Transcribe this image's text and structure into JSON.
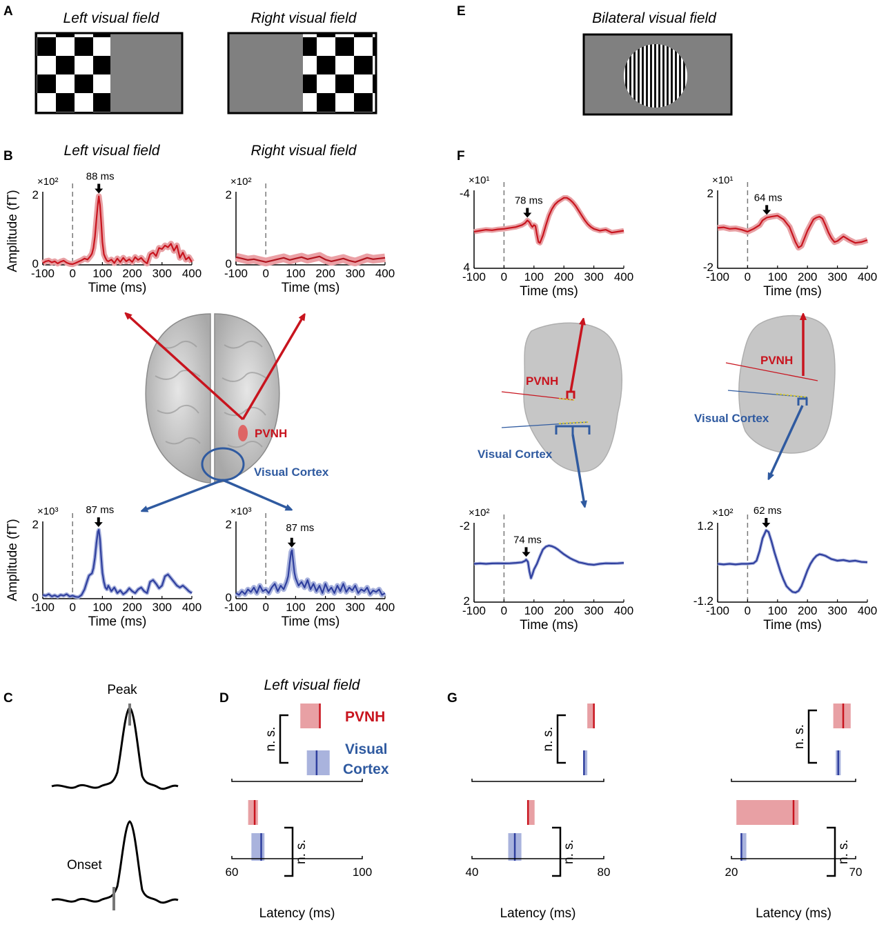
{
  "panels": {
    "A": "A",
    "B": "B",
    "C": "C",
    "D": "D",
    "E": "E",
    "F": "F",
    "G": "G"
  },
  "titles": {
    "left_vf": "Left visual field",
    "right_vf": "Right visual field",
    "bilateral_vf": "Bilateral visual field"
  },
  "labels": {
    "time_axis": "Time (ms)",
    "amp_axis": "Amplitude (fT)",
    "latency_axis": "Latency (ms)",
    "pvnh": "PVNH",
    "visual_cortex": "Visual Cortex",
    "visual": "Visual",
    "cortex": "Cortex",
    "peak": "Peak",
    "onset": "Onset",
    "ns": "n. s."
  },
  "colors": {
    "pvnh": "#c8141e",
    "visual_cortex": "#2f3f9e",
    "pvnh_band": "#e8a0a4",
    "vc_band": "#a9b3dd"
  },
  "chart_data": [
    {
      "id": "B-left-pvnh",
      "type": "line",
      "multiplier": "×10²",
      "peak_label": "88 ms",
      "peak_x": 88,
      "xlim": [
        -100,
        400
      ],
      "ylim": [
        0,
        2
      ],
      "yticks": [
        "0",
        "2"
      ],
      "xticks": [
        -100,
        0,
        100,
        200,
        300,
        400
      ],
      "x": [
        -100,
        -90,
        -80,
        -70,
        -60,
        -50,
        -40,
        -30,
        -20,
        -10,
        0,
        10,
        20,
        30,
        40,
        50,
        60,
        65,
        70,
        75,
        80,
        85,
        88,
        92,
        96,
        100,
        105,
        110,
        115,
        120,
        130,
        140,
        150,
        160,
        170,
        180,
        190,
        200,
        210,
        220,
        230,
        240,
        250,
        260,
        270,
        280,
        290,
        300,
        310,
        320,
        330,
        340,
        350,
        360,
        370,
        380,
        390,
        400
      ],
      "y": [
        0.05,
        0.1,
        0.12,
        0.07,
        0.1,
        0.04,
        0.09,
        0.12,
        0.06,
        0.03,
        0.02,
        0.05,
        0.09,
        0.13,
        0.18,
        0.15,
        0.25,
        0.32,
        0.48,
        0.8,
        1.3,
        1.75,
        1.95,
        1.7,
        1.2,
        0.65,
        0.3,
        0.2,
        0.12,
        0.1,
        0.15,
        0.05,
        0.18,
        0.08,
        0.2,
        0.1,
        0.16,
        0.08,
        0.22,
        0.14,
        0.2,
        0.1,
        0.04,
        0.3,
        0.35,
        0.25,
        0.48,
        0.45,
        0.55,
        0.5,
        0.6,
        0.4,
        0.55,
        0.2,
        0.35,
        0.15,
        0.22,
        0.08
      ]
    },
    {
      "id": "B-right-pvnh",
      "type": "line",
      "multiplier": "×10²",
      "xlim": [
        -100,
        400
      ],
      "ylim": [
        0,
        2
      ],
      "yticks": [
        "0",
        "2"
      ],
      "xticks": [
        -100,
        0,
        100,
        200,
        300,
        400
      ],
      "x": [
        -100,
        -80,
        -60,
        -40,
        -20,
        0,
        20,
        40,
        60,
        80,
        100,
        120,
        140,
        160,
        180,
        200,
        220,
        240,
        260,
        280,
        300,
        320,
        340,
        360,
        380,
        400
      ],
      "y": [
        0.22,
        0.18,
        0.14,
        0.16,
        0.12,
        0.08,
        0.12,
        0.16,
        0.2,
        0.14,
        0.18,
        0.22,
        0.16,
        0.2,
        0.24,
        0.15,
        0.1,
        0.14,
        0.18,
        0.12,
        0.08,
        0.14,
        0.2,
        0.16,
        0.18,
        0.2
      ]
    },
    {
      "id": "B-left-vc",
      "type": "line",
      "multiplier": "×10³",
      "peak_label": "87 ms",
      "peak_x": 87,
      "xlim": [
        -100,
        400
      ],
      "ylim": [
        0,
        2
      ],
      "yticks": [
        "0",
        "2"
      ],
      "xticks": [
        -100,
        0,
        100,
        200,
        300,
        400
      ],
      "x": [
        -100,
        -90,
        -80,
        -70,
        -60,
        -50,
        -40,
        -30,
        -20,
        -10,
        0,
        10,
        20,
        30,
        40,
        50,
        55,
        60,
        65,
        70,
        75,
        80,
        85,
        88,
        92,
        96,
        100,
        105,
        110,
        115,
        120,
        130,
        140,
        150,
        160,
        170,
        180,
        190,
        200,
        210,
        220,
        230,
        240,
        250,
        260,
        270,
        280,
        290,
        300,
        310,
        320,
        330,
        340,
        350,
        360,
        370,
        380,
        390,
        400
      ],
      "y": [
        0.1,
        0.08,
        0.12,
        0.06,
        0.09,
        0.05,
        0.1,
        0.08,
        0.12,
        0.06,
        0.08,
        0.05,
        0.04,
        0.1,
        0.25,
        0.5,
        0.62,
        0.65,
        0.68,
        0.82,
        1.1,
        1.5,
        1.8,
        1.85,
        1.6,
        1.1,
        0.7,
        0.45,
        0.3,
        0.25,
        0.35,
        0.2,
        0.3,
        0.15,
        0.22,
        0.12,
        0.18,
        0.28,
        0.2,
        0.15,
        0.25,
        0.3,
        0.2,
        0.15,
        0.45,
        0.5,
        0.4,
        0.28,
        0.35,
        0.6,
        0.65,
        0.55,
        0.45,
        0.35,
        0.3,
        0.35,
        0.28,
        0.2,
        0.15
      ]
    },
    {
      "id": "B-right-vc",
      "type": "line",
      "multiplier": "×10³",
      "peak_label": "87 ms",
      "peak_x": 87,
      "xlim": [
        -100,
        400
      ],
      "ylim": [
        0,
        2
      ],
      "yticks": [
        "0",
        "2"
      ],
      "xticks": [
        -100,
        0,
        100,
        200,
        300,
        400
      ],
      "x": [
        -100,
        -90,
        -80,
        -70,
        -60,
        -50,
        -40,
        -30,
        -20,
        -10,
        0,
        10,
        20,
        30,
        40,
        50,
        60,
        70,
        75,
        80,
        85,
        88,
        92,
        96,
        100,
        110,
        120,
        130,
        140,
        150,
        160,
        170,
        180,
        190,
        200,
        210,
        220,
        230,
        240,
        250,
        260,
        270,
        280,
        290,
        300,
        310,
        320,
        330,
        340,
        350,
        360,
        370,
        380,
        390,
        400
      ],
      "y": [
        0.15,
        0.1,
        0.2,
        0.12,
        0.25,
        0.18,
        0.3,
        0.15,
        0.35,
        0.2,
        0.25,
        0.15,
        0.3,
        0.4,
        0.2,
        0.35,
        0.25,
        0.45,
        0.6,
        0.95,
        1.25,
        1.3,
        1.0,
        0.7,
        0.55,
        0.35,
        0.45,
        0.3,
        0.5,
        0.25,
        0.4,
        0.2,
        0.35,
        0.15,
        0.4,
        0.2,
        0.3,
        0.15,
        0.35,
        0.2,
        0.4,
        0.18,
        0.3,
        0.22,
        0.35,
        0.15,
        0.25,
        0.2,
        0.3,
        0.12,
        0.22,
        0.18,
        0.25,
        0.1,
        0.15
      ]
    },
    {
      "id": "F-left-pvnh",
      "type": "line",
      "multiplier": "×10¹",
      "peak_label": "78 ms",
      "peak_x": 78,
      "xlim": [
        -100,
        400
      ],
      "ylim": [
        4,
        -4
      ],
      "yticks": [
        "4",
        "-4"
      ],
      "xticks": [
        -100,
        0,
        100,
        200,
        300,
        400
      ],
      "x": [
        -100,
        -80,
        -60,
        -40,
        -20,
        0,
        20,
        40,
        60,
        70,
        78,
        85,
        90,
        95,
        100,
        105,
        110,
        115,
        120,
        130,
        140,
        150,
        160,
        170,
        180,
        190,
        200,
        210,
        220,
        230,
        240,
        250,
        260,
        270,
        280,
        290,
        300,
        320,
        340,
        360,
        380,
        400
      ],
      "y": [
        0.1,
        0.0,
        -0.1,
        -0.05,
        -0.15,
        -0.2,
        -0.3,
        -0.4,
        -0.6,
        -0.8,
        -1.1,
        -0.9,
        -0.6,
        -0.4,
        -0.6,
        -0.5,
        0.4,
        1.2,
        1.3,
        0.5,
        -0.6,
        -1.6,
        -2.3,
        -2.8,
        -3.1,
        -3.3,
        -3.5,
        -3.5,
        -3.3,
        -3.0,
        -2.6,
        -2.1,
        -1.6,
        -1.1,
        -0.7,
        -0.4,
        -0.2,
        0.0,
        -0.1,
        0.2,
        0.1,
        0.0
      ]
    },
    {
      "id": "F-right-pvnh",
      "type": "line",
      "multiplier": "×10¹",
      "peak_label": "64 ms",
      "peak_x": 64,
      "xlim": [
        -100,
        400
      ],
      "ylim": [
        -2,
        2
      ],
      "yticks": [
        "-2",
        "2"
      ],
      "xticks": [
        -100,
        0,
        100,
        200,
        300,
        400
      ],
      "x": [
        -100,
        -80,
        -60,
        -40,
        -20,
        0,
        20,
        40,
        50,
        64,
        80,
        100,
        120,
        140,
        150,
        160,
        170,
        180,
        190,
        200,
        210,
        220,
        230,
        240,
        250,
        260,
        270,
        280,
        290,
        300,
        320,
        340,
        360,
        380,
        400
      ],
      "y": [
        0.15,
        0.18,
        0.1,
        0.12,
        0.05,
        -0.05,
        0.1,
        0.3,
        0.55,
        0.7,
        0.75,
        0.8,
        0.6,
        0.2,
        -0.2,
        -0.6,
        -0.9,
        -0.8,
        -0.4,
        0.0,
        0.3,
        0.6,
        0.7,
        0.75,
        0.65,
        0.3,
        -0.1,
        -0.4,
        -0.6,
        -0.55,
        -0.3,
        -0.5,
        -0.65,
        -0.6,
        -0.5
      ]
    },
    {
      "id": "F-left-vc",
      "type": "line",
      "multiplier": "×10²",
      "peak_label": "74 ms",
      "peak_x": 74,
      "xlim": [
        -100,
        400
      ],
      "ylim": [
        2,
        -2
      ],
      "yticks": [
        "2",
        "-2"
      ],
      "xticks": [
        -100,
        0,
        100,
        200,
        300,
        400
      ],
      "x": [
        -100,
        -80,
        -60,
        -40,
        -20,
        0,
        20,
        40,
        60,
        70,
        74,
        80,
        85,
        90,
        95,
        100,
        110,
        120,
        130,
        140,
        150,
        160,
        170,
        180,
        190,
        200,
        210,
        220,
        230,
        240,
        250,
        260,
        280,
        300,
        320,
        340,
        360,
        380,
        400
      ],
      "y": [
        0.0,
        -0.02,
        0.0,
        -0.02,
        -0.03,
        -0.02,
        -0.03,
        -0.05,
        -0.08,
        -0.15,
        -0.22,
        -0.1,
        0.4,
        0.75,
        0.55,
        0.3,
        0.0,
        -0.4,
        -0.75,
        -0.9,
        -0.95,
        -0.92,
        -0.85,
        -0.75,
        -0.62,
        -0.5,
        -0.4,
        -0.3,
        -0.22,
        -0.15,
        -0.08,
        -0.05,
        0.02,
        0.05,
        0.0,
        -0.03,
        -0.02,
        -0.03,
        -0.05
      ]
    },
    {
      "id": "F-right-vc",
      "type": "line",
      "multiplier": "×10²",
      "peak_label": "62 ms",
      "peak_x": 62,
      "xlim": [
        -100,
        400
      ],
      "ylim": [
        -1.2,
        1.2
      ],
      "yticks": [
        "-1.2",
        "1.2"
      ],
      "xticks": [
        -100,
        0,
        100,
        200,
        300,
        400
      ],
      "x": [
        -100,
        -80,
        -60,
        -40,
        -20,
        0,
        20,
        30,
        40,
        50,
        62,
        70,
        80,
        90,
        100,
        110,
        120,
        130,
        140,
        150,
        160,
        170,
        180,
        190,
        200,
        210,
        220,
        230,
        240,
        250,
        260,
        270,
        280,
        300,
        320,
        340,
        360,
        380,
        400
      ],
      "y": [
        0.0,
        -0.02,
        0.0,
        -0.02,
        0.0,
        0.0,
        0.02,
        0.1,
        0.4,
        0.8,
        1.05,
        1.0,
        0.7,
        0.35,
        0.05,
        -0.25,
        -0.5,
        -0.7,
        -0.8,
        -0.88,
        -0.9,
        -0.85,
        -0.7,
        -0.45,
        -0.2,
        0.0,
        0.15,
        0.25,
        0.3,
        0.28,
        0.25,
        0.2,
        0.15,
        0.1,
        0.12,
        0.08,
        0.1,
        0.06,
        0.05
      ]
    },
    {
      "id": "D",
      "type": "latency-bars",
      "title": "Left visual field",
      "xlim": [
        60,
        100
      ],
      "xticks": [
        60,
        100
      ],
      "peak": {
        "pvnh": {
          "mean": 87,
          "ci": [
            81,
            87
          ]
        },
        "visual_cortex": {
          "mean": 86,
          "ci": [
            83,
            90
          ]
        }
      },
      "onset": {
        "pvnh": {
          "mean": 67,
          "ci": [
            65,
            68
          ]
        },
        "visual_cortex": {
          "mean": 69,
          "ci": [
            66,
            70
          ]
        }
      }
    },
    {
      "id": "G-left",
      "type": "latency-bars",
      "xlim": [
        40,
        80
      ],
      "xticks": [
        40,
        80
      ],
      "peak": {
        "pvnh": {
          "mean": 77,
          "ci": [
            75,
            77
          ]
        },
        "visual_cortex": {
          "mean": 74,
          "ci": [
            74,
            75
          ]
        }
      },
      "onset": {
        "pvnh": {
          "mean": 57,
          "ci": [
            57,
            59
          ]
        },
        "visual_cortex": {
          "mean": 53,
          "ci": [
            51,
            55
          ]
        }
      }
    },
    {
      "id": "G-right",
      "type": "latency-bars",
      "xlim": [
        20,
        70
      ],
      "xticks": [
        20,
        70
      ],
      "peak": {
        "pvnh": {
          "mean": 65,
          "ci": [
            61,
            68
          ]
        },
        "visual_cortex": {
          "mean": 63,
          "ci": [
            62,
            64
          ]
        }
      },
      "onset": {
        "pvnh": {
          "mean": 45,
          "ci": [
            22,
            47
          ]
        },
        "visual_cortex": {
          "mean": 24,
          "ci": [
            24,
            26
          ]
        }
      }
    }
  ]
}
